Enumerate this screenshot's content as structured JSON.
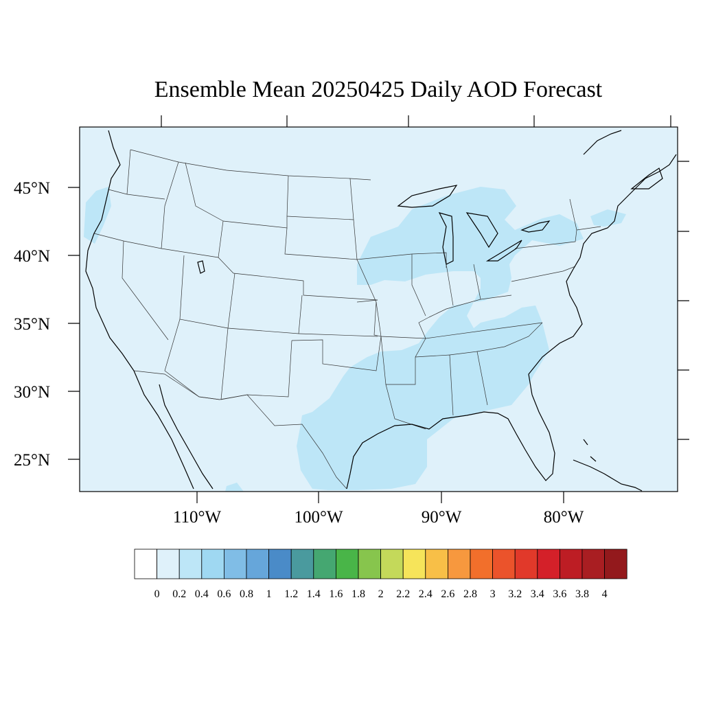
{
  "title": "Ensemble Mean 20250425 Daily AOD Forecast",
  "map": {
    "background_color": "#dff1fa",
    "aerosol_fill_color": "#bde6f7",
    "lat_labels": [
      "45°N",
      "40°N",
      "35°N",
      "30°N",
      "25°N"
    ],
    "lon_labels": [
      "110°W",
      "100°W",
      "90°W",
      "80°W"
    ]
  },
  "colorbar": {
    "labels": [
      "0",
      "0.2",
      "0.4",
      "0.6",
      "0.8",
      "1",
      "1.2",
      "1.4",
      "1.6",
      "1.8",
      "2",
      "2.2",
      "2.4",
      "2.6",
      "2.8",
      "3",
      "3.2",
      "3.4",
      "3.6",
      "3.8",
      "4"
    ],
    "colors": [
      "#ffffff",
      "#dff1fa",
      "#bde6f7",
      "#9fd8f2",
      "#80bde6",
      "#66a6da",
      "#4a8bc8",
      "#4a9a9e",
      "#45a771",
      "#49b548",
      "#87c54d",
      "#c4d95a",
      "#f6e45a",
      "#f8bf47",
      "#f7983e",
      "#f26f2b",
      "#eb532b",
      "#e1392a",
      "#d42029",
      "#bd1d24",
      "#a91e22",
      "#93191c"
    ]
  }
}
